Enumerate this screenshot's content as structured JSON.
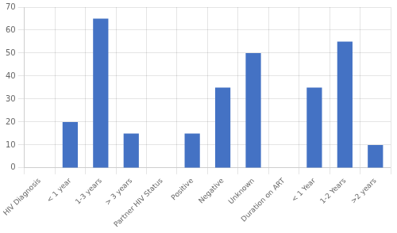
{
  "chart_data": {
    "type": "bar",
    "categories": [
      "HIV Diagnosis",
      "< 1 year",
      "1-3 years",
      "> 3 years",
      "Partner HIV Status",
      "Positive",
      "Negative",
      "Unknown",
      "Duration on ART",
      "< 1 Year",
      "1-2 Years",
      ">2 years"
    ],
    "values": [
      null,
      20,
      65,
      15,
      null,
      15,
      35,
      50,
      null,
      35,
      55,
      10
    ],
    "color": "#4472C4",
    "ylim": [
      0,
      70
    ],
    "yticks": [
      0,
      10,
      20,
      30,
      40,
      50,
      60,
      70
    ],
    "grid": true
  }
}
